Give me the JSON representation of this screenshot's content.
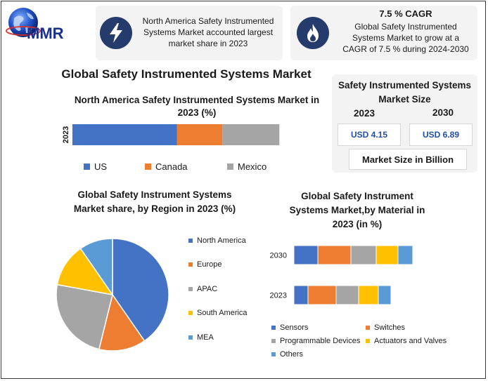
{
  "brand": {
    "logo_text": "MMR"
  },
  "highlights": [
    {
      "icon": "lightning-icon",
      "text_lines": [
        "North America Safety Instrumented",
        "Systems Market accounted largest",
        "market share in 2023"
      ]
    },
    {
      "icon": "flame-icon",
      "headline": "7.5 % CAGR",
      "text_lines": [
        "Global Safety Instrumented",
        "Systems Market to grow at a",
        "CAGR of 7.5 % during 2024-2030"
      ]
    }
  ],
  "main_title": "Global Safety Instrumented Systems Market",
  "market_size": {
    "title_lines": [
      "Safety Instrumented Systems",
      "Market Size"
    ],
    "years": [
      "2023",
      "2030"
    ],
    "values": [
      "USD 4.15",
      "USD 6.89"
    ],
    "unit_label": "Market Size in Billion"
  },
  "colors": {
    "blue": "#4472c4",
    "orange": "#ed7d31",
    "gray": "#a5a5a5",
    "yellow": "#ffc000",
    "lightblue": "#5b9bd5",
    "icon_bg": "#243b6b",
    "value_text": "#1f4fa0",
    "card_bg": "#f3f3f3"
  },
  "chart_data": [
    {
      "type": "bar",
      "orientation": "horizontal-stacked",
      "title_lines": [
        "North America Safety Instrumented Systems Market in",
        "2023 (%)"
      ],
      "categories": [
        "2023"
      ],
      "series": [
        {
          "name": "US",
          "values": [
            55
          ]
        },
        {
          "name": "Canada",
          "values": [
            24
          ]
        },
        {
          "name": "Mexico",
          "values": [
            30
          ]
        }
      ],
      "legend_position": "bottom",
      "grid": false
    },
    {
      "type": "pie",
      "title_lines": [
        "Global Safety Instrument Systems",
        "Market share, by Region in 2023  (%)"
      ],
      "labels": [
        "North America",
        "Europe",
        "APAC",
        "South America",
        "MEA"
      ],
      "values": [
        42,
        14,
        25,
        13,
        10
      ],
      "legend_position": "right"
    },
    {
      "type": "bar",
      "orientation": "horizontal-stacked",
      "title_lines": [
        "Global Safety Instrument",
        "Systems Market,by Material in",
        "2023 (in %)"
      ],
      "categories": [
        "2030",
        "2023"
      ],
      "series": [
        {
          "name": "Sensors",
          "values": [
            34,
            20
          ]
        },
        {
          "name": "Switches",
          "values": [
            47,
            40
          ]
        },
        {
          "name": "Programmable Devices",
          "values": [
            36,
            32
          ]
        },
        {
          "name": "Actuators and Valves",
          "values": [
            31,
            28
          ]
        },
        {
          "name": "Others",
          "values": [
            21,
            18
          ]
        }
      ],
      "legend_position": "bottom",
      "grid": false
    }
  ]
}
